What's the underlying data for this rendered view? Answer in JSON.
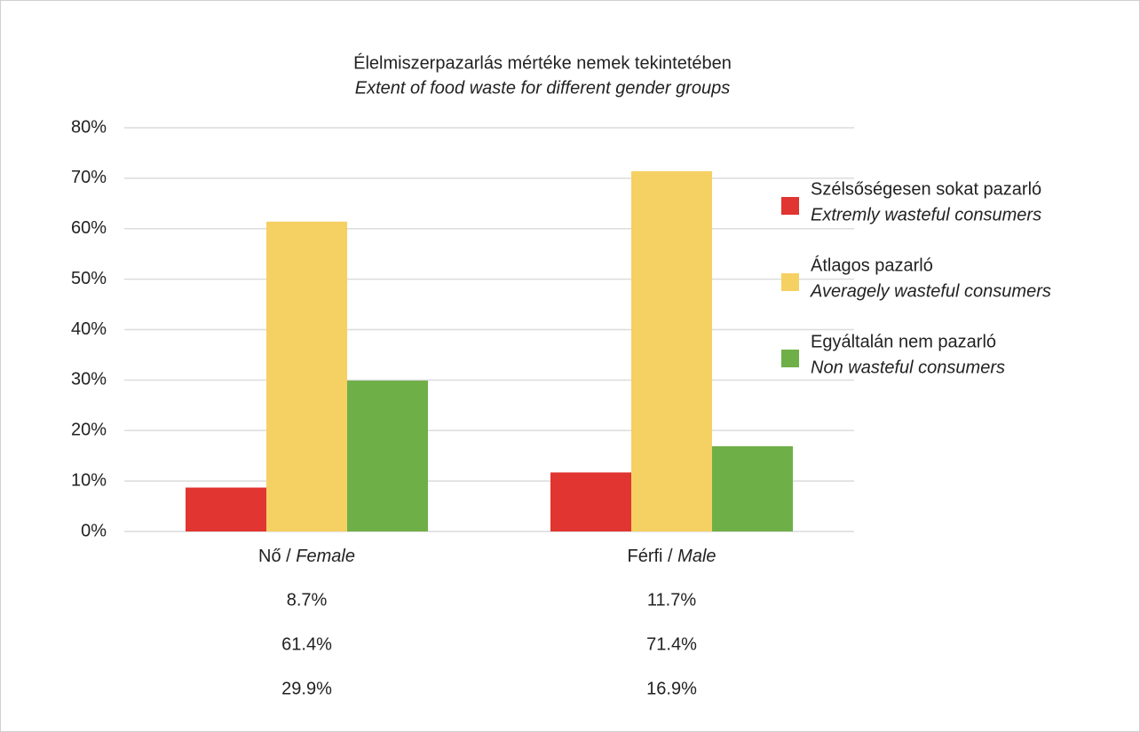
{
  "chart_data": {
    "type": "bar",
    "title": "Élelmiszerpazarlás mértéke nemek tekintetében",
    "subtitle": "Extent of food waste for different gender groups",
    "categories": [
      "Nő / Female",
      "Férfi / Male"
    ],
    "series": [
      {
        "name": "Szélsőségesen sokat pazarló",
        "subname": "Extremly wasteful consumers",
        "color": "#e03530",
        "values": [
          8.7,
          11.7
        ],
        "value_labels": [
          "8.7%",
          "11.7%"
        ]
      },
      {
        "name": "Átlagos pazarló",
        "subname": "Averagely wasteful consumers",
        "color": "#f5d063",
        "values": [
          61.4,
          71.4
        ],
        "value_labels": [
          "61.4%",
          "71.4%"
        ]
      },
      {
        "name": "Egyáltalán nem pazarló",
        "subname": "Non wasteful consumers",
        "color": "#6faf48",
        "values": [
          29.9,
          16.9
        ],
        "value_labels": [
          "29.9%",
          "16.9%"
        ]
      }
    ],
    "ylim": [
      0,
      80
    ],
    "yticks": [
      {
        "value": 0,
        "label": "0%"
      },
      {
        "value": 10,
        "label": "10%"
      },
      {
        "value": 20,
        "label": "20%"
      },
      {
        "value": 30,
        "label": "30%"
      },
      {
        "value": 40,
        "label": "40%"
      },
      {
        "value": 50,
        "label": "50%"
      },
      {
        "value": 60,
        "label": "60%"
      },
      {
        "value": 70,
        "label": "70%"
      },
      {
        "value": 80,
        "label": "80%"
      }
    ],
    "grid": true,
    "legend": "right"
  }
}
